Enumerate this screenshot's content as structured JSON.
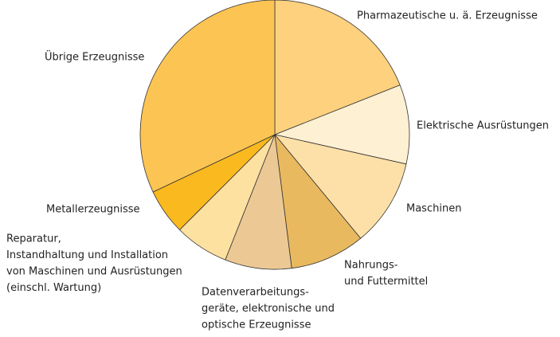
{
  "chart_data": {
    "type": "pie",
    "categories": [
      [
        "Pharmazeutische u. ä. Erzeugnisse"
      ],
      [
        "Elektrische Ausrüstungen"
      ],
      [
        "Maschinen"
      ],
      [
        "Nahrungs-",
        "und Futtermittel"
      ],
      [
        "Datenverarbeitungs-",
        "geräte, elektronische und",
        "optische Erzeugnisse"
      ],
      [
        "Reparatur,",
        "Instandhaltung und Installation",
        "von Maschinen und Ausrüstungen",
        "(einschl. Wartung)"
      ],
      [
        "Metallerzeugnisse"
      ],
      [
        "Übrige Erzeugnisse"
      ]
    ],
    "values": [
      19,
      9.5,
      10.5,
      9,
      8,
      6.5,
      5.5,
      32
    ],
    "colors": [
      "#fdd17d",
      "#fef0d2",
      "#fde0a8",
      "#e8b95e",
      "#ecc994",
      "#fde1a0",
      "#f9b91f",
      "#fcc452"
    ]
  }
}
